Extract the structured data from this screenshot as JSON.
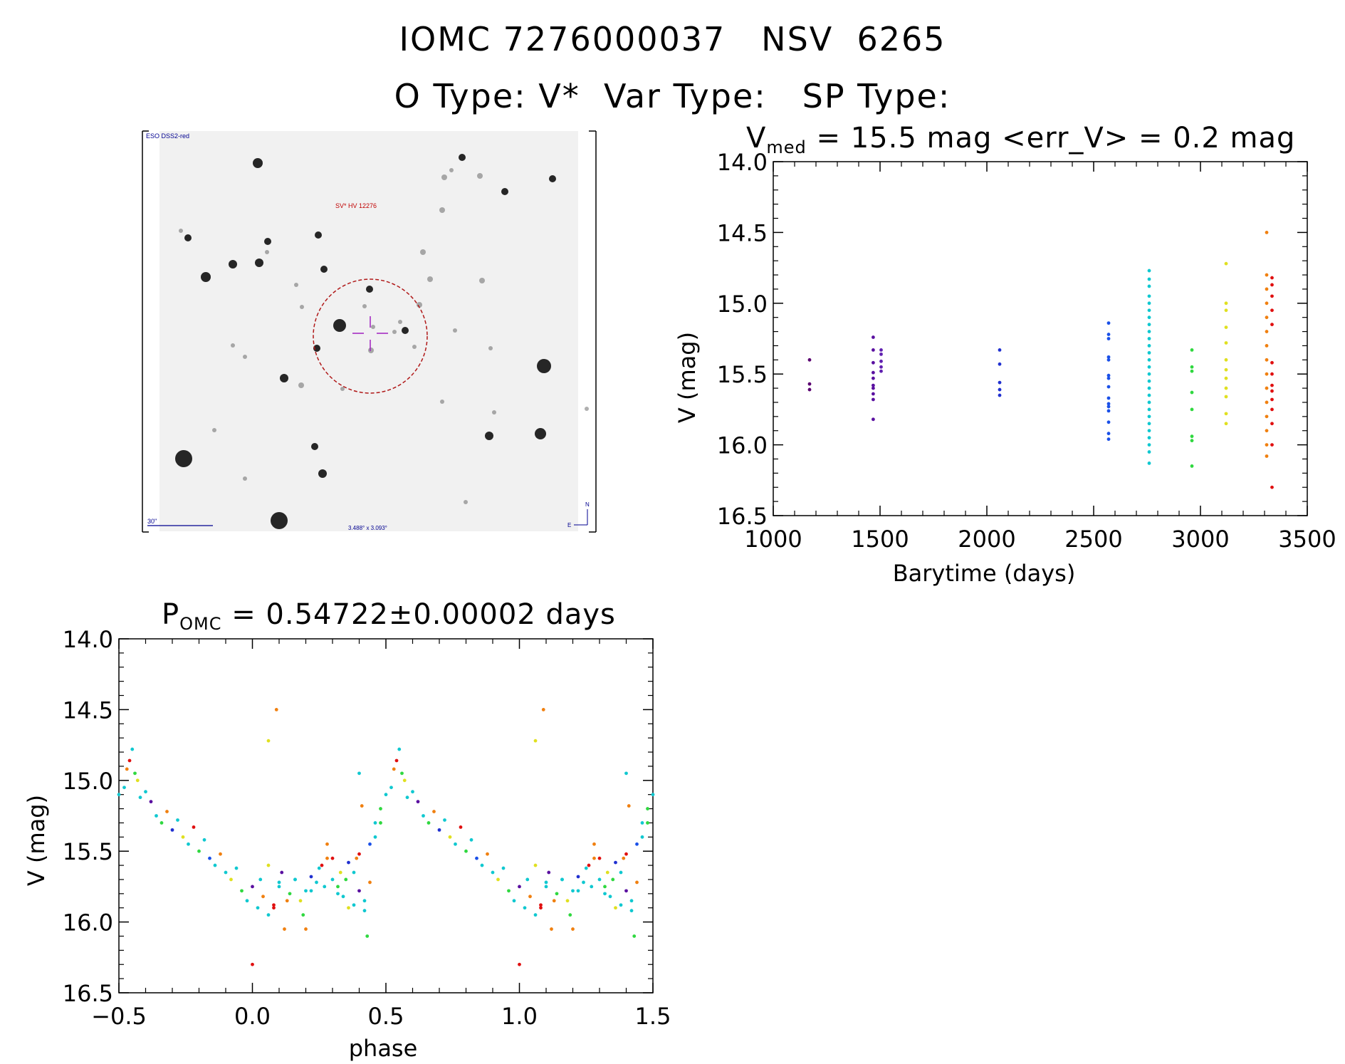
{
  "header": {
    "line1": "IOMC 7276000037   NSV  6265",
    "line2": "O Type: V*  Var Type:   SP Type:"
  },
  "finder_chart": {
    "survey_label": "ESO DSS2-red",
    "target_label": "SV* HV 12276",
    "scale_label": "30\"",
    "coord_label": "3.488° x 3.093°",
    "north_label": "N",
    "east_label": "E"
  },
  "colors": {
    "axis": "#000000",
    "circle": "#b01818",
    "crosshair": "#a020c0",
    "finder_text": "#000090",
    "finder_red_text": "#c00000"
  },
  "chart_data": [
    {
      "id": "light-curve",
      "type": "scatter",
      "title_prefix": "V",
      "title_sub": "med",
      "title_rest": " = 15.5 mag <err_V> = 0.2 mag",
      "xlabel": "Barytime (days)",
      "ylabel": "V (mag)",
      "xlim": [
        1000,
        3500
      ],
      "ylim": [
        14.0,
        16.5
      ],
      "y_inverted": true,
      "xticks": [
        1000,
        1500,
        2000,
        2500,
        3000,
        3500
      ],
      "xtick_labels": [
        "1000",
        "1500",
        "2000",
        "2500",
        "3000",
        "3500"
      ],
      "yticks": [
        14.0,
        14.5,
        15.0,
        15.5,
        16.0,
        16.5
      ],
      "ytick_labels": [
        "14.0",
        "14.5",
        "15.0",
        "15.5",
        "16.0",
        "16.5"
      ],
      "groups": [
        {
          "x": 1170,
          "color": "#5a0070",
          "mags": [
            15.4,
            15.57,
            15.61
          ]
        },
        {
          "x": 1468,
          "color": "#5a10a0",
          "mags": [
            15.24,
            15.33,
            15.42,
            15.49,
            15.53,
            15.58,
            15.6,
            15.64,
            15.68,
            15.82
          ]
        },
        {
          "x": 1505,
          "color": "#6020b0",
          "mags": [
            15.33,
            15.36,
            15.41,
            15.45,
            15.48
          ]
        },
        {
          "x": 2060,
          "color": "#2030d0",
          "mags": [
            15.33,
            15.43,
            15.56,
            15.61,
            15.65
          ]
        },
        {
          "x": 2570,
          "color": "#1a50e8",
          "mags": [
            15.14,
            15.22,
            15.25,
            15.38,
            15.4,
            15.51,
            15.53,
            15.59,
            15.67,
            15.71,
            15.73,
            15.76,
            15.84,
            15.92,
            15.96
          ]
        },
        {
          "x": 2760,
          "color": "#10c8d0",
          "mags": [
            14.77,
            14.83,
            14.88,
            14.95,
            15.0,
            15.05,
            15.1,
            15.15,
            15.2,
            15.25,
            15.3,
            15.35,
            15.4,
            15.45,
            15.5,
            15.55,
            15.6,
            15.65,
            15.7,
            15.75,
            15.8,
            15.85,
            15.9,
            15.95,
            16.0,
            16.05,
            16.13
          ]
        },
        {
          "x": 2960,
          "color": "#30d840",
          "mags": [
            15.33,
            15.45,
            15.48,
            15.63,
            15.75,
            15.94,
            15.97,
            16.15
          ]
        },
        {
          "x": 3120,
          "color": "#e0e020",
          "mags": [
            14.72,
            15.0,
            15.05,
            15.17,
            15.28,
            15.4,
            15.47,
            15.53,
            15.6,
            15.66,
            15.78,
            15.85
          ]
        },
        {
          "x": 3310,
          "color": "#f08010",
          "mags": [
            14.5,
            14.8,
            14.9,
            15.0,
            15.1,
            15.2,
            15.3,
            15.4,
            15.5,
            15.6,
            15.7,
            15.8,
            15.9,
            16.0,
            16.08
          ]
        },
        {
          "x": 3335,
          "color": "#e01010",
          "mags": [
            14.82,
            14.87,
            14.95,
            15.05,
            15.15,
            15.42,
            15.5,
            15.58,
            15.62,
            15.68,
            15.75,
            15.85,
            16.0,
            16.3
          ]
        }
      ]
    },
    {
      "id": "phase-curve",
      "type": "scatter",
      "title_prefix": "P",
      "title_sub": "OMC",
      "title_rest": " = 0.54722±0.00002 days",
      "xlabel": "phase",
      "ylabel": "V (mag)",
      "xlim": [
        -0.5,
        1.5
      ],
      "ylim": [
        14.0,
        16.5
      ],
      "y_inverted": true,
      "xticks": [
        -0.5,
        0.0,
        0.5,
        1.0,
        1.5
      ],
      "xtick_labels": [
        "−0.5",
        "0.0",
        "0.5",
        "1.0",
        "1.5"
      ],
      "yticks": [
        14.0,
        14.5,
        15.0,
        15.5,
        16.0,
        16.5
      ],
      "ytick_labels": [
        "14.0",
        "14.5",
        "15.0",
        "15.5",
        "16.0",
        "16.5"
      ],
      "period": 1.0,
      "points": [
        {
          "phase": 0.52,
          "mag": 15.05,
          "color": "#10c8d0"
        },
        {
          "phase": 0.53,
          "mag": 14.92,
          "color": "#f08010"
        },
        {
          "phase": 0.54,
          "mag": 14.86,
          "color": "#e01010"
        },
        {
          "phase": 0.55,
          "mag": 14.78,
          "color": "#10c8d0"
        },
        {
          "phase": 0.56,
          "mag": 14.95,
          "color": "#30d840"
        },
        {
          "phase": 0.57,
          "mag": 15.0,
          "color": "#e0e020"
        },
        {
          "phase": 0.58,
          "mag": 15.12,
          "color": "#10c8d0"
        },
        {
          "phase": 0.6,
          "mag": 15.08,
          "color": "#10c8d0"
        },
        {
          "phase": 0.62,
          "mag": 15.15,
          "color": "#5a10a0"
        },
        {
          "phase": 0.64,
          "mag": 15.25,
          "color": "#10c8d0"
        },
        {
          "phase": 0.66,
          "mag": 15.3,
          "color": "#30d840"
        },
        {
          "phase": 0.68,
          "mag": 15.22,
          "color": "#f08010"
        },
        {
          "phase": 0.7,
          "mag": 15.35,
          "color": "#2030d0"
        },
        {
          "phase": 0.72,
          "mag": 15.28,
          "color": "#10c8d0"
        },
        {
          "phase": 0.74,
          "mag": 15.4,
          "color": "#e0e020"
        },
        {
          "phase": 0.76,
          "mag": 15.45,
          "color": "#10c8d0"
        },
        {
          "phase": 0.78,
          "mag": 15.33,
          "color": "#e01010"
        },
        {
          "phase": 0.8,
          "mag": 15.5,
          "color": "#30d840"
        },
        {
          "phase": 0.82,
          "mag": 15.42,
          "color": "#10c8d0"
        },
        {
          "phase": 0.84,
          "mag": 15.55,
          "color": "#1a50e8"
        },
        {
          "phase": 0.86,
          "mag": 15.6,
          "color": "#10c8d0"
        },
        {
          "phase": 0.88,
          "mag": 15.52,
          "color": "#f08010"
        },
        {
          "phase": 0.9,
          "mag": 15.65,
          "color": "#10c8d0"
        },
        {
          "phase": 0.92,
          "mag": 15.7,
          "color": "#e0e020"
        },
        {
          "phase": 0.94,
          "mag": 15.62,
          "color": "#10c8d0"
        },
        {
          "phase": 0.96,
          "mag": 15.78,
          "color": "#30d840"
        },
        {
          "phase": 0.98,
          "mag": 15.85,
          "color": "#10c8d0"
        },
        {
          "phase": 1.0,
          "mag": 15.75,
          "color": "#5a10a0"
        },
        {
          "phase": 1.02,
          "mag": 15.9,
          "color": "#10c8d0"
        },
        {
          "phase": 1.04,
          "mag": 15.82,
          "color": "#f08010"
        },
        {
          "phase": 1.06,
          "mag": 15.95,
          "color": "#10c8d0"
        },
        {
          "phase": 1.08,
          "mag": 15.88,
          "color": "#e01010"
        },
        {
          "phase": 1.1,
          "mag": 15.72,
          "color": "#10c8d0"
        },
        {
          "phase": 1.12,
          "mag": 16.05,
          "color": "#f08010"
        },
        {
          "phase": 1.14,
          "mag": 15.8,
          "color": "#30d840"
        },
        {
          "phase": 1.16,
          "mag": 15.7,
          "color": "#10c8d0"
        },
        {
          "phase": 1.18,
          "mag": 15.85,
          "color": "#e0e020"
        },
        {
          "phase": 1.2,
          "mag": 15.78,
          "color": "#10c8d0"
        },
        {
          "phase": 1.22,
          "mag": 15.68,
          "color": "#2030d0"
        },
        {
          "phase": 1.24,
          "mag": 15.72,
          "color": "#10c8d0"
        },
        {
          "phase": 1.26,
          "mag": 15.6,
          "color": "#e01010"
        },
        {
          "phase": 1.28,
          "mag": 15.55,
          "color": "#f08010"
        },
        {
          "phase": 1.3,
          "mag": 15.7,
          "color": "#10c8d0"
        },
        {
          "phase": 1.32,
          "mag": 15.75,
          "color": "#30d840"
        },
        {
          "phase": 1.34,
          "mag": 15.82,
          "color": "#10c8d0"
        },
        {
          "phase": 1.36,
          "mag": 15.9,
          "color": "#e0e020"
        },
        {
          "phase": 1.38,
          "mag": 15.65,
          "color": "#10c8d0"
        },
        {
          "phase": 1.4,
          "mag": 15.78,
          "color": "#5a10a0"
        },
        {
          "phase": 1.42,
          "mag": 15.85,
          "color": "#10c8d0"
        },
        {
          "phase": 1.44,
          "mag": 15.72,
          "color": "#f08010"
        },
        {
          "phase": 1.46,
          "mag": 15.4,
          "color": "#10c8d0"
        },
        {
          "phase": 1.48,
          "mag": 15.3,
          "color": "#30d840"
        },
        {
          "phase": 1.06,
          "mag": 14.72,
          "color": "#e0e020"
        },
        {
          "phase": 1.09,
          "mag": 14.5,
          "color": "#f08010"
        },
        {
          "phase": 0.0,
          "mag": 16.3,
          "color": "#e01010"
        },
        {
          "phase": 0.3,
          "mag": 15.55,
          "color": "#e01010"
        },
        {
          "phase": 0.25,
          "mag": 15.62,
          "color": "#10c8d0"
        },
        {
          "phase": 0.28,
          "mag": 15.45,
          "color": "#f08010"
        },
        {
          "phase": 0.32,
          "mag": 15.8,
          "color": "#10c8d0"
        },
        {
          "phase": 0.35,
          "mag": 15.7,
          "color": "#30d840"
        },
        {
          "phase": 0.38,
          "mag": 15.88,
          "color": "#10c8d0"
        },
        {
          "phase": 0.4,
          "mag": 15.52,
          "color": "#e01010"
        },
        {
          "phase": 0.42,
          "mag": 15.92,
          "color": "#10c8d0"
        },
        {
          "phase": 0.44,
          "mag": 15.45,
          "color": "#1a50e8"
        },
        {
          "phase": 0.46,
          "mag": 15.3,
          "color": "#10c8d0"
        },
        {
          "phase": 0.48,
          "mag": 15.2,
          "color": "#30d840"
        },
        {
          "phase": 0.5,
          "mag": 15.1,
          "color": "#10c8d0"
        },
        {
          "phase": 0.1,
          "mag": 15.75,
          "color": "#10c8d0"
        },
        {
          "phase": 0.13,
          "mag": 15.85,
          "color": "#f08010"
        },
        {
          "phase": 0.16,
          "mag": 15.7,
          "color": "#10c8d0"
        },
        {
          "phase": 0.19,
          "mag": 15.95,
          "color": "#30d840"
        },
        {
          "phase": 0.22,
          "mag": 15.78,
          "color": "#10c8d0"
        },
        {
          "phase": 0.06,
          "mag": 15.6,
          "color": "#e0e020"
        },
        {
          "phase": 0.03,
          "mag": 15.7,
          "color": "#10c8d0"
        },
        {
          "phase": 0.08,
          "mag": 15.9,
          "color": "#e01010"
        },
        {
          "phase": 0.11,
          "mag": 15.65,
          "color": "#5a10a0"
        },
        {
          "phase": 0.2,
          "mag": 16.05,
          "color": "#f08010"
        },
        {
          "phase": 0.36,
          "mag": 15.58,
          "color": "#2030d0"
        },
        {
          "phase": 0.33,
          "mag": 15.65,
          "color": "#e0e020"
        },
        {
          "phase": 0.27,
          "mag": 15.75,
          "color": "#10c8d0"
        },
        {
          "phase": 0.4,
          "mag": 14.95,
          "color": "#10c8d0"
        },
        {
          "phase": 0.39,
          "mag": 15.55,
          "color": "#f08010"
        },
        {
          "phase": 0.43,
          "mag": 16.1,
          "color": "#30d840"
        },
        {
          "phase": 0.41,
          "mag": 15.18,
          "color": "#f08010"
        }
      ]
    }
  ]
}
